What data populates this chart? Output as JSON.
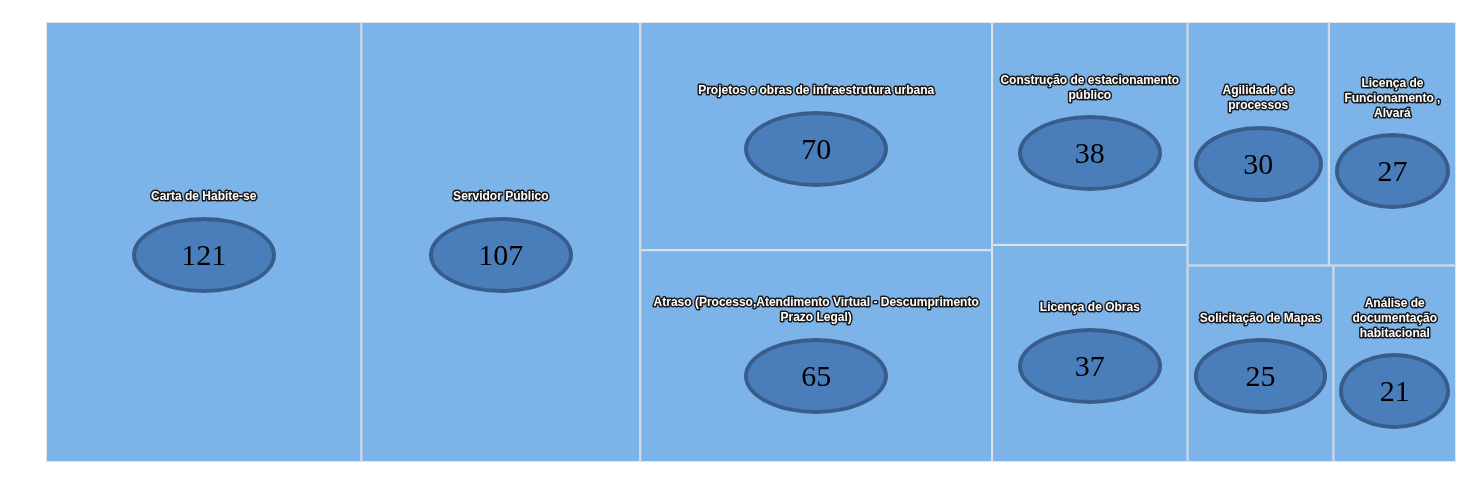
{
  "chart_data": {
    "type": "other",
    "categories": [
      "Carta de Habite-se",
      "Servidor Público",
      "Projetos e obras de infraestrutura urbana",
      "Atraso (Processo,Atendimento Virtual - Descumprimento Prazo Legal)",
      "Construção de estacionamento público",
      "Licença de Obras",
      "Agilidade de processos",
      "Licença de Funcionamento , Alvará",
      "Solicitação de Mapas",
      "Análise de documentação habitacional"
    ],
    "values": [
      121,
      107,
      70,
      65,
      38,
      37,
      30,
      27,
      25,
      21
    ],
    "data_labels": true
  }
}
